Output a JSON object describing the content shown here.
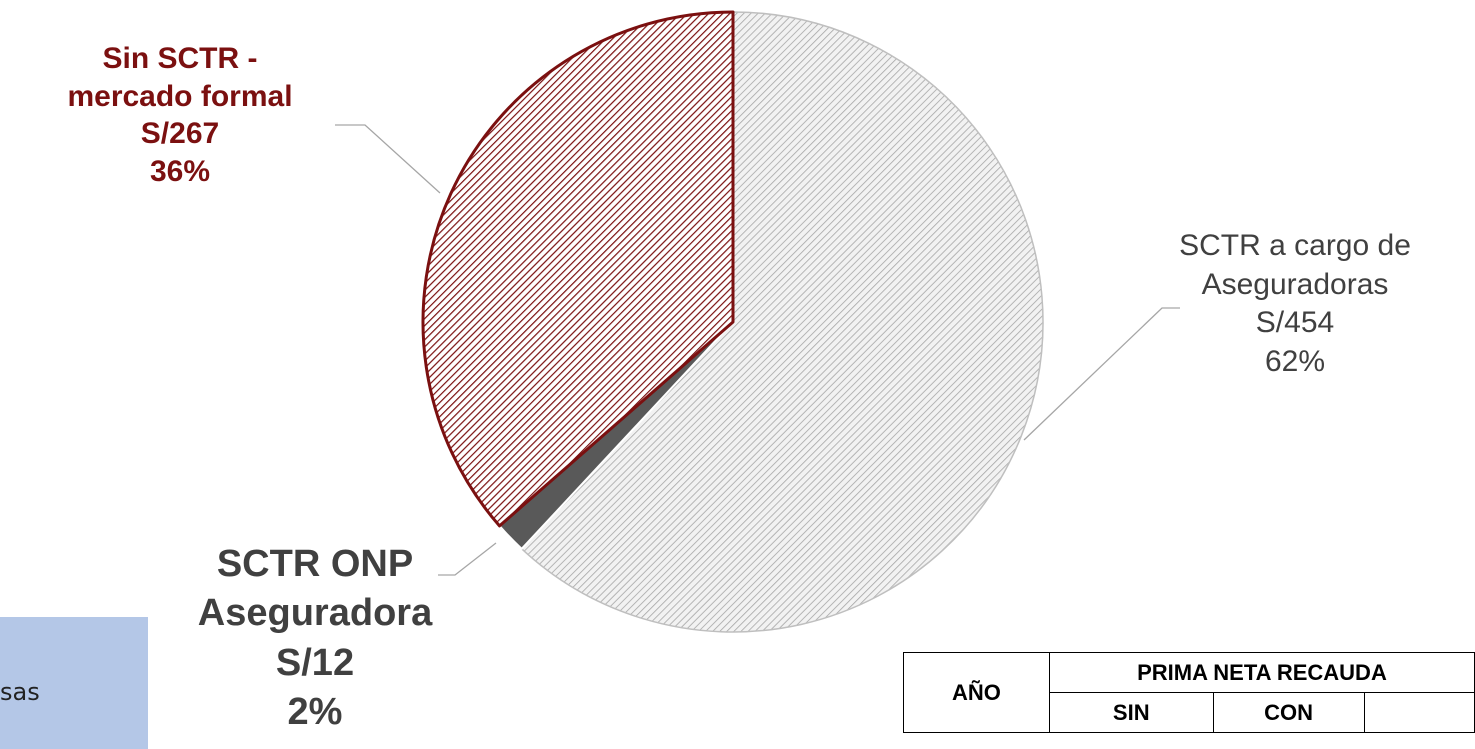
{
  "colors": {
    "sin_sctr": "#7b1010",
    "sctr_aseguradoras": "#c0c0c0",
    "sctr_onp": "#595959",
    "side_box": "#b4c7e7"
  },
  "chart_data": {
    "type": "pie",
    "slices": [
      {
        "key": "aseg",
        "lines": [
          "SCTR a cargo de",
          "Aseguradoras",
          "S/454",
          "62%"
        ],
        "value": 454,
        "percent": 62
      },
      {
        "key": "onp",
        "lines": [
          "SCTR ONP",
          "Aseguradora",
          "S/12",
          "2%"
        ],
        "value": 12,
        "percent": 2
      },
      {
        "key": "sin",
        "lines": [
          "Sin SCTR -",
          "mercado formal",
          "S/267",
          "36%"
        ],
        "value": 267,
        "percent": 36
      }
    ]
  },
  "side_box": {
    "text": "sas"
  },
  "table": {
    "header_main": "PRIMA NETA RECAUDA",
    "col_year": "AÑO",
    "col_sin": "SIN",
    "col_con": "CON"
  }
}
